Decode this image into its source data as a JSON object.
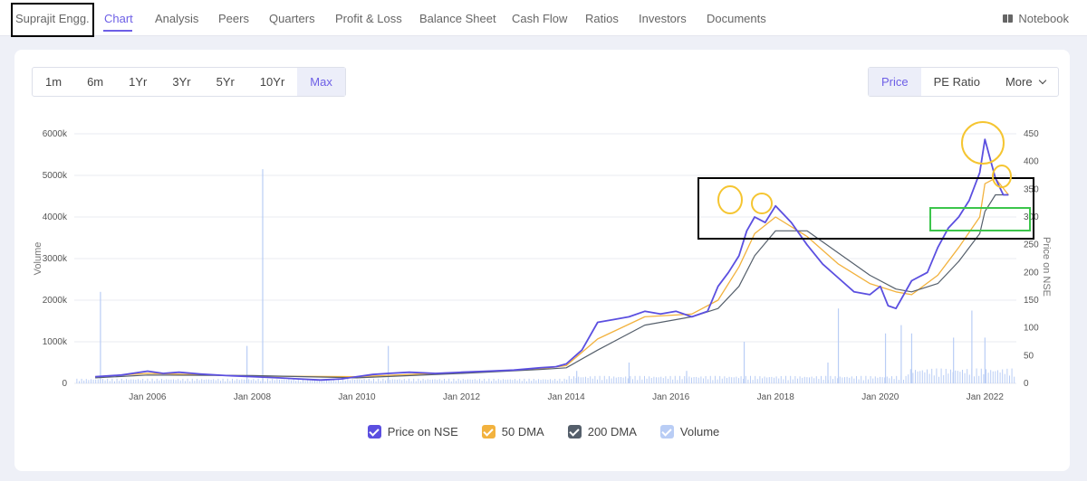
{
  "nav": {
    "company": "Suprajit Engg.",
    "tabs": [
      "Chart",
      "Analysis",
      "Peers",
      "Quarters",
      "Profit & Loss",
      "Balance Sheet",
      "Cash Flow",
      "Ratios",
      "Investors",
      "Documents"
    ],
    "active_tab": "Chart",
    "notebook": "Notebook"
  },
  "periods": [
    "1m",
    "6m",
    "1Yr",
    "3Yr",
    "5Yr",
    "10Yr",
    "Max"
  ],
  "selected_period": "Max",
  "modes": [
    "Price",
    "PE Ratio",
    "More"
  ],
  "selected_mode": "Price",
  "colors": {
    "accent": "#6d5fe6",
    "price": "#5b4fe0",
    "dma50": "#f2b23e",
    "dma200": "#555f6b",
    "volume": "#b9cdf5",
    "annotation_yellow": "#f5c531",
    "annotation_green": "#3cc54b"
  },
  "chart_data": {
    "type": "line",
    "x_ticks": [
      "Jan 2006",
      "Jan 2008",
      "Jan 2010",
      "Jan 2012",
      "Jan 2014",
      "Jan 2016",
      "Jan 2018",
      "Jan 2020",
      "Jan 2022"
    ],
    "y_left": {
      "label": "Volume",
      "ticks": [
        "0",
        "1000k",
        "2000k",
        "3000k",
        "4000k",
        "5000k",
        "6000k"
      ],
      "range": [
        0,
        6000000
      ]
    },
    "y_right": {
      "label": "Price on NSE",
      "ticks": [
        "0",
        "50",
        "100",
        "150",
        "200",
        "250",
        "300",
        "350",
        "400",
        "450"
      ],
      "range": [
        0,
        450
      ]
    },
    "series": [
      {
        "name": "Price on NSE",
        "x": [
          2005.0,
          2005.5,
          2006.0,
          2006.3,
          2006.6,
          2007.0,
          2007.5,
          2008.0,
          2008.5,
          2008.9,
          2009.3,
          2009.7,
          2010.0,
          2010.3,
          2010.6,
          2011.0,
          2011.5,
          2012.0,
          2012.5,
          2013.0,
          2013.5,
          2013.8,
          2014.0,
          2014.3,
          2014.6,
          2014.9,
          2015.2,
          2015.5,
          2015.8,
          2016.1,
          2016.4,
          2016.7,
          2016.9,
          2017.1,
          2017.3,
          2017.45,
          2017.6,
          2017.8,
          2018.0,
          2018.3,
          2018.6,
          2018.9,
          2019.2,
          2019.5,
          2019.8,
          2020.0,
          2020.15,
          2020.3,
          2020.6,
          2020.9,
          2021.1,
          2021.3,
          2021.5,
          2021.7,
          2021.9,
          2022.0,
          2022.2,
          2022.35,
          2022.45
        ],
        "values": [
          12,
          15,
          22,
          18,
          20,
          17,
          14,
          12,
          10,
          8,
          6,
          8,
          12,
          16,
          18,
          20,
          18,
          20,
          22,
          24,
          28,
          30,
          35,
          60,
          110,
          115,
          120,
          130,
          125,
          130,
          120,
          130,
          175,
          200,
          230,
          275,
          300,
          290,
          320,
          290,
          250,
          215,
          190,
          165,
          160,
          175,
          140,
          135,
          185,
          200,
          245,
          280,
          300,
          330,
          380,
          440,
          370,
          340,
          340
        ]
      },
      {
        "name": "50 DMA",
        "x": [
          2005.0,
          2006.0,
          2008.0,
          2010.0,
          2012.0,
          2013.5,
          2014.0,
          2014.6,
          2015.5,
          2016.4,
          2016.9,
          2017.3,
          2017.6,
          2018.0,
          2018.6,
          2019.2,
          2019.8,
          2020.3,
          2020.6,
          2021.1,
          2021.5,
          2021.9,
          2022.0,
          2022.2,
          2022.45
        ],
        "values": [
          12,
          18,
          13,
          12,
          20,
          26,
          32,
          80,
          120,
          125,
          150,
          210,
          270,
          300,
          265,
          215,
          180,
          165,
          160,
          195,
          245,
          300,
          360,
          370,
          340
        ]
      },
      {
        "name": "200 DMA",
        "x": [
          2005.0,
          2006.0,
          2008.0,
          2010.0,
          2012.0,
          2013.5,
          2014.0,
          2014.6,
          2015.5,
          2016.4,
          2016.9,
          2017.3,
          2017.6,
          2018.0,
          2018.6,
          2019.2,
          2019.8,
          2020.3,
          2020.6,
          2021.1,
          2021.5,
          2021.9,
          2022.0,
          2022.2,
          2022.45
        ],
        "values": [
          10,
          15,
          14,
          10,
          18,
          25,
          28,
          60,
          105,
          120,
          135,
          175,
          230,
          275,
          275,
          235,
          195,
          170,
          165,
          180,
          220,
          270,
          310,
          340,
          340
        ]
      }
    ],
    "volume": {
      "name": "Volume",
      "baseline": 80000,
      "spikes": [
        {
          "x": 2005.1,
          "v": 2200000
        },
        {
          "x": 2008.2,
          "v": 5150000
        },
        {
          "x": 2007.9,
          "v": 900000
        },
        {
          "x": 2010.6,
          "v": 900000
        },
        {
          "x": 2014.2,
          "v": 300000
        },
        {
          "x": 2015.2,
          "v": 500000
        },
        {
          "x": 2016.3,
          "v": 300000
        },
        {
          "x": 2017.4,
          "v": 1000000
        },
        {
          "x": 2019.0,
          "v": 500000
        },
        {
          "x": 2019.2,
          "v": 1800000
        },
        {
          "x": 2020.1,
          "v": 1200000
        },
        {
          "x": 2020.4,
          "v": 1400000
        },
        {
          "x": 2020.6,
          "v": 1200000
        },
        {
          "x": 2021.4,
          "v": 1100000
        },
        {
          "x": 2021.75,
          "v": 1750000
        },
        {
          "x": 2022.0,
          "v": 1100000
        }
      ]
    },
    "x_range": [
      2004.6,
      2022.6
    ],
    "grid": true,
    "legend": "bottom"
  },
  "legend": [
    {
      "label": "Price on NSE",
      "color": "#5b4fe0"
    },
    {
      "label": "50 DMA",
      "color": "#f2b23e"
    },
    {
      "label": "200 DMA",
      "color": "#555f6b"
    },
    {
      "label": "Volume",
      "color": "#b9cdf5"
    }
  ]
}
